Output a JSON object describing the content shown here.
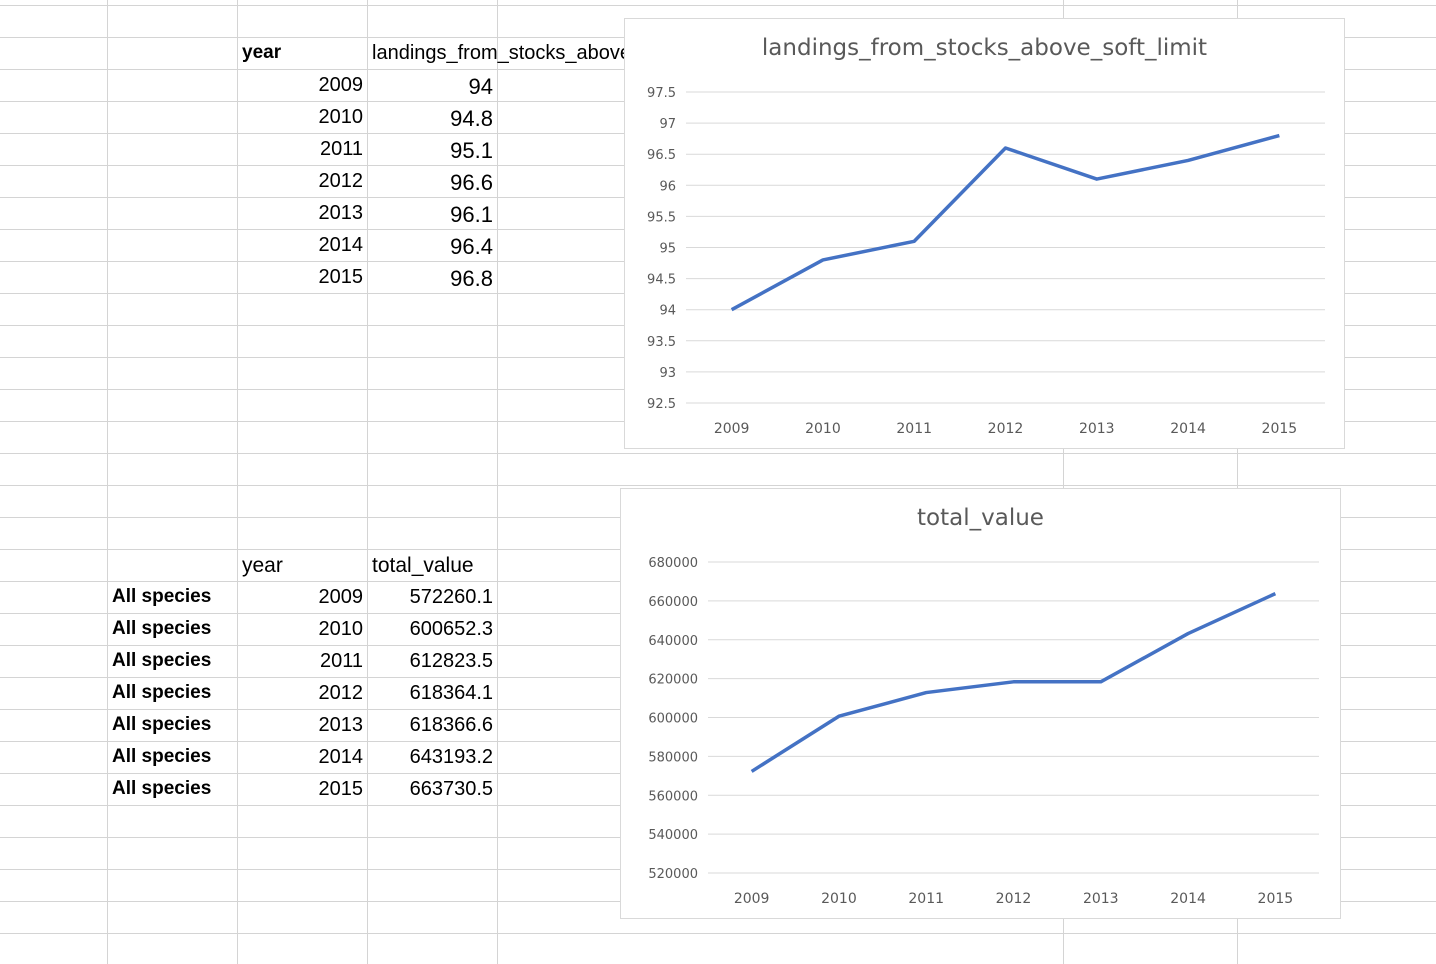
{
  "sheet": {
    "table1": {
      "headers": [
        "year",
        "landings_from_stocks_above_soft_limit"
      ],
      "rows": [
        [
          "2009",
          "94"
        ],
        [
          "2010",
          "94.8"
        ],
        [
          "2011",
          "95.1"
        ],
        [
          "2012",
          "96.6"
        ],
        [
          "2013",
          "96.1"
        ],
        [
          "2014",
          "96.4"
        ],
        [
          "2015",
          "96.8"
        ]
      ]
    },
    "table2": {
      "headers": [
        "year",
        "total_value"
      ],
      "rows": [
        [
          "All species",
          "2009",
          "572260.1"
        ],
        [
          "All species",
          "2010",
          "600652.3"
        ],
        [
          "All species",
          "2011",
          "612823.5"
        ],
        [
          "All species",
          "2012",
          "618364.1"
        ],
        [
          "All species",
          "2013",
          "618366.6"
        ],
        [
          "All species",
          "2014",
          "643193.2"
        ],
        [
          "All species",
          "2015",
          "663730.5"
        ]
      ]
    }
  },
  "chart_data": [
    {
      "type": "line",
      "title": "landings_from_stocks_above_soft_limit",
      "categories": [
        "2009",
        "2010",
        "2011",
        "2012",
        "2013",
        "2014",
        "2015"
      ],
      "values": [
        94,
        94.8,
        95.1,
        96.6,
        96.1,
        96.4,
        96.8
      ],
      "ylim": [
        92.5,
        97.5
      ],
      "yticks": [
        "92.5",
        "93",
        "93.5",
        "94",
        "94.5",
        "95",
        "95.5",
        "96",
        "96.5",
        "97",
        "97.5"
      ],
      "grid": true,
      "color": "#4472C4"
    },
    {
      "type": "line",
      "title": "total_value",
      "categories": [
        "2009",
        "2010",
        "2011",
        "2012",
        "2013",
        "2014",
        "2015"
      ],
      "values": [
        572260.1,
        600652.3,
        612823.5,
        618364.1,
        618366.6,
        643193.2,
        663730.5
      ],
      "ylim": [
        520000,
        680000
      ],
      "yticks": [
        "520000",
        "540000",
        "560000",
        "580000",
        "600000",
        "620000",
        "640000",
        "660000",
        "680000"
      ],
      "grid": true,
      "color": "#4472C4"
    }
  ]
}
